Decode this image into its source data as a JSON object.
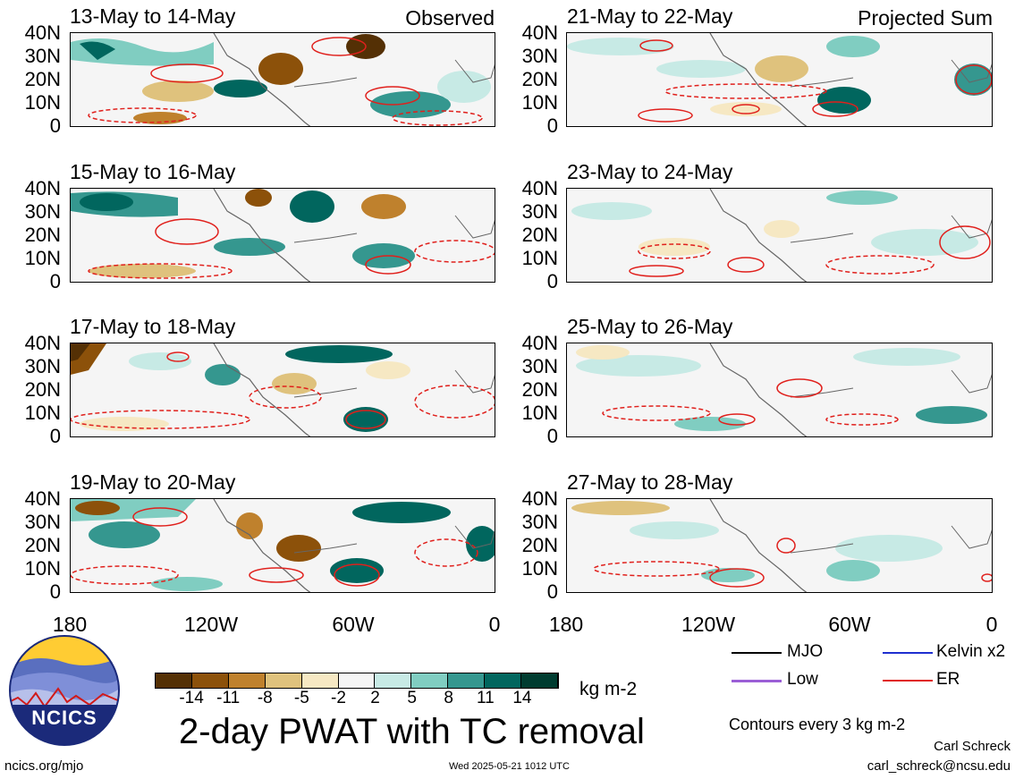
{
  "panels_observed": [
    {
      "title": "13-May to 14-May",
      "tag": "Observed"
    },
    {
      "title": "15-May to 16-May",
      "tag": ""
    },
    {
      "title": "17-May to 18-May",
      "tag": ""
    },
    {
      "title": "19-May to 20-May",
      "tag": ""
    }
  ],
  "panels_projected": [
    {
      "title": "21-May to 22-May",
      "tag": "Projected Sum"
    },
    {
      "title": "23-May to 24-May",
      "tag": ""
    },
    {
      "title": "25-May to 26-May",
      "tag": ""
    },
    {
      "title": "27-May to 28-May",
      "tag": ""
    }
  ],
  "y_ticks": [
    "40N",
    "30N",
    "20N",
    "10N",
    "0"
  ],
  "x_ticks": [
    "180",
    "120W",
    "60W",
    "0"
  ],
  "colorbar": {
    "colors": [
      "#543005",
      "#8c510a",
      "#bf812d",
      "#dfc27d",
      "#f6e8c3",
      "#f5f5f5",
      "#c7eae5",
      "#80cdc1",
      "#35978f",
      "#01665e",
      "#003c30"
    ],
    "ticks": [
      "-14",
      "-11",
      "-8",
      "-5",
      "-2",
      "2",
      "5",
      "8",
      "11",
      "14"
    ],
    "units": "kg m-2"
  },
  "legend": {
    "mjo": "MJO",
    "kelvin": "Kelvin x2",
    "low": "Low",
    "er": "ER",
    "mjo_color": "#000000",
    "kelvin_color": "#1f2fd0",
    "low_color": "#9b5fd6",
    "er_color": "#e0201c"
  },
  "main_title": "2-day PWAT with TC removal",
  "contour_note": "Contours every 3 kg m-2",
  "author": "Carl Schreck",
  "email": "carl_schreck@ncsu.edu",
  "website": "ncics.org/mjo",
  "timestamp": "Wed 2025-05-21 1012 UTC",
  "logo_text": "NCICS"
}
